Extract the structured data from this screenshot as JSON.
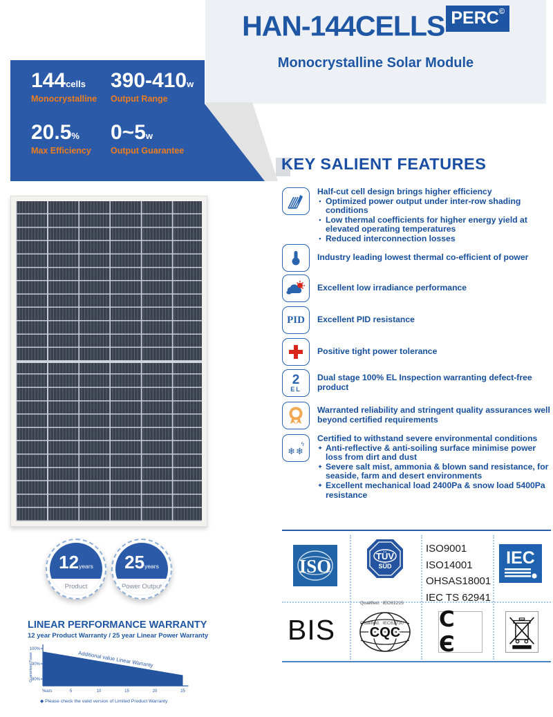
{
  "colors": {
    "primary_blue": "#2a5aa8",
    "title_blue": "#1e56a4",
    "orange": "#ee7d1f",
    "band_gray": "#edf1f6",
    "red": "#d9261c",
    "medal_orange": "#f2a852"
  },
  "header": {
    "title": "HAN-144CELLS",
    "badge": "PERC",
    "badge_mark": "©",
    "subtitle": "Monocrystalline Solar Module"
  },
  "banner": {
    "stats": [
      {
        "value": "144",
        "unit": "cells",
        "label": "Monocrystalline"
      },
      {
        "value": "390-410",
        "unit": "w",
        "label": "Output Range"
      },
      {
        "value": "20.5",
        "unit": "%",
        "label": "Max Efficiency"
      },
      {
        "value": "0~5",
        "unit": "w",
        "label": "Output Guarantee"
      }
    ]
  },
  "features": {
    "heading": "KEY SALIENT FEATURES",
    "items": [
      {
        "icon": "half-cut-cell-icon",
        "title": "Half-cut cell design brings higher efficiency",
        "bullet_char": "•",
        "bullets": [
          "Optimized power output under inter-row shading conditions",
          "Low thermal coefficients for higher energy yield at elevated operating temperatures",
          "Reduced interconnection losses"
        ]
      },
      {
        "icon": "thermometer-icon",
        "title": "Industry leading lowest thermal co-efficient of power",
        "bullets": []
      },
      {
        "icon": "cloud-sun-icon",
        "title": "Excellent low irradiance performance",
        "bullets": []
      },
      {
        "icon": "pid-icon",
        "icon_text": "PID",
        "title": "Excellent PID resistance",
        "bullets": []
      },
      {
        "icon": "plus-icon",
        "title": "Positive tight power tolerance",
        "bullets": []
      },
      {
        "icon": "el-inspection-icon",
        "icon_text_number": "2",
        "icon_text_letters": "EL",
        "title": "Dual stage 100% EL Inspection warranting defect-free product",
        "bullets": []
      },
      {
        "icon": "medal-icon",
        "title": "Warranted reliability and stringent quality assurances well beyond certified requirements",
        "bullets": []
      },
      {
        "icon": "snowflakes-icon",
        "icon_glyphs": "❄❄",
        "icon_bolt": "ϟ",
        "title": "Certified to withstand severe environmental conditions",
        "bullet_char": "✦",
        "bullets": [
          "Anti-reflective & anti-soiling surface minimise power loss from dirt and dust",
          "Severe salt mist, ammonia & blown sand resistance, for seaside, farm and desert environments",
          "Excellent mechanical load 2400Pa & snow load 5400Pa resistance"
        ]
      }
    ]
  },
  "warranty_badges": [
    {
      "value": "12",
      "unit": "years",
      "label": "Product"
    },
    {
      "value": "25",
      "unit": "years",
      "label": "Power Output"
    }
  ],
  "chart_data": {
    "type": "area",
    "title": "LINEAR PERFORMANCE WARRANTY",
    "subtitle": "12 year Product Warranty / 25 year Linear Power Warranty",
    "ylabel": "Guaranteed Power",
    "x": [
      0,
      25
    ],
    "values": [
      98,
      82.5
    ],
    "ylim": [
      76,
      101
    ],
    "yticks": [
      "100%",
      "90%",
      "80%"
    ],
    "xticks": [
      "Years",
      "5",
      "10",
      "15",
      "20",
      "25"
    ],
    "legend": "none",
    "grid": false,
    "annotation": "Additional value  Linear Warranty",
    "footnote_mark": "◆",
    "footnote": "Please check the valid version of Limited Product Warranty"
  },
  "certifications": {
    "iso_logo_text": "ISO",
    "tuv_line1": "TÜV",
    "tuv_line2": "SÜD",
    "tuv_qualified_1": "Qualified.  IEC61215",
    "tuv_qualified_2": "Qualified.  IEC61730",
    "standards": [
      "ISO9001",
      "ISO14001",
      "OHSAS18001",
      "IEC TS 62941"
    ],
    "iec_logo_text": "IEC",
    "bis_text": "BIS",
    "cqc_text": "CQC",
    "ce_label": "CE",
    "ce_display": "C Є"
  }
}
